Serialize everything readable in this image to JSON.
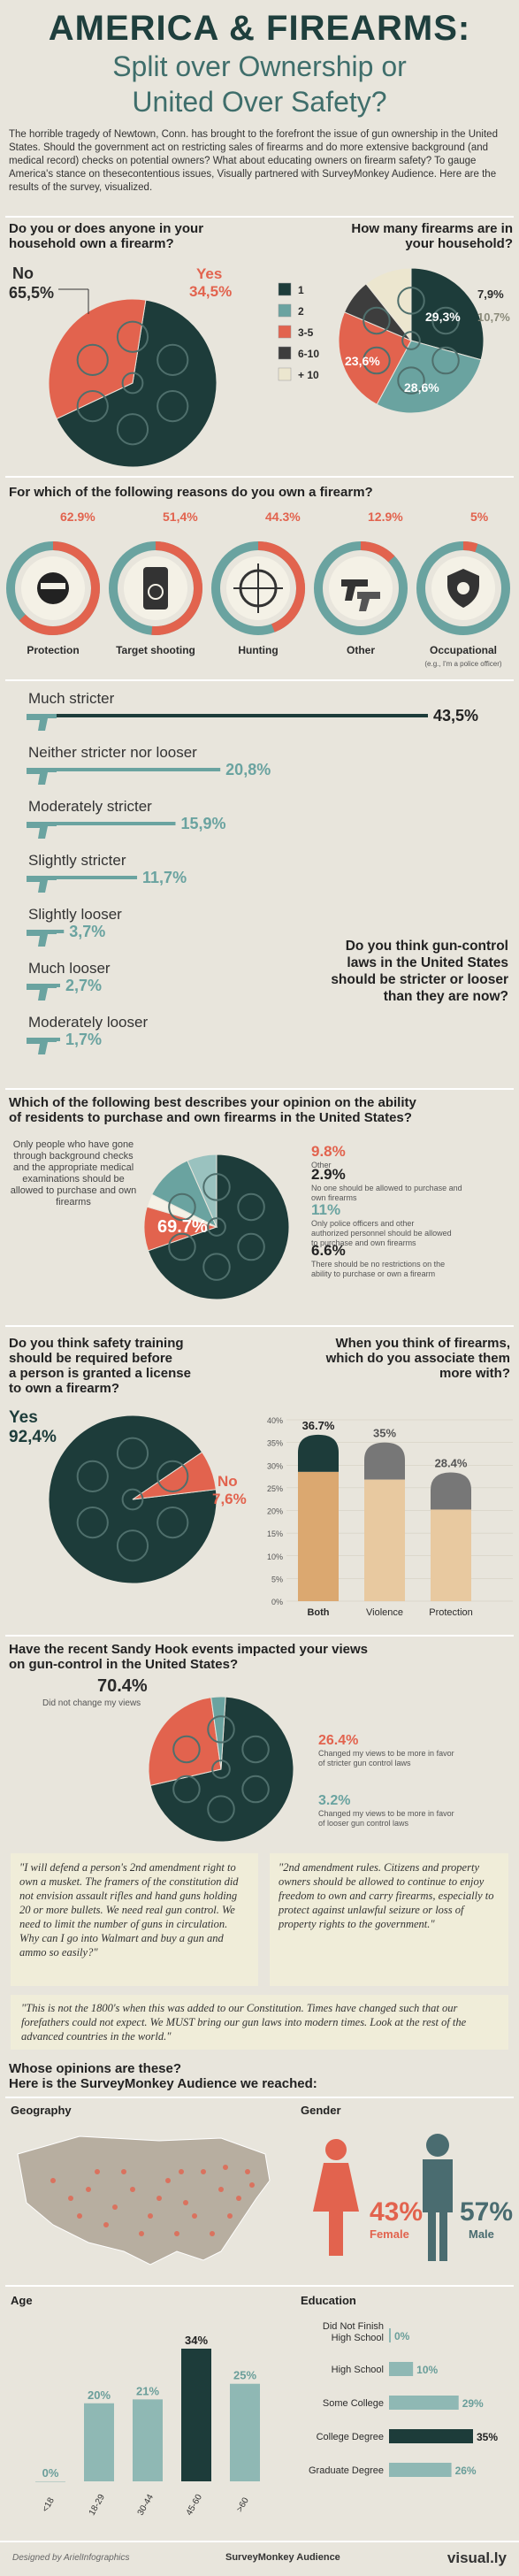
{
  "header": {
    "title_line1": "AMERICA & FIREARMS:",
    "title_line2": "Split over Ownership or",
    "title_line3": "United Over Safety?",
    "intro": "The horrible tragedy of Newtown, Conn. has brought to the forefront the issue of gun ownership in the United States. Should the government act on restricting sales of firearms and do more extensive background (and medical record) checks on potential owners? What about educating owners on firearm safety? To gauge America's stance on thesecontentious issues, Visually partnered with SurveyMonkey Audience. Here are the results of the survey, visualized."
  },
  "colors": {
    "dark": "#1d3c3a",
    "teal": "#6aa3a0",
    "red": "#e2634e",
    "grey": "#3d3d3d",
    "beige": "#ece6cf",
    "tan": "#dba870"
  },
  "q1": {
    "question_line1": "Do you or does anyone in your",
    "question_line2": "household own a firearm?",
    "no_label": "No",
    "no_value": "65,5%",
    "yes_label": "Yes",
    "yes_value": "34,5%"
  },
  "q2": {
    "question_line1": "How many firearms are in",
    "question_line2": "your household?",
    "legend": [
      "1",
      "2",
      "3-5",
      "6-10",
      "+ 10"
    ],
    "labels": [
      "29,3%",
      "28,6%",
      "23,6%",
      "7,9%",
      "10,7%"
    ]
  },
  "q3": {
    "question": "For which of the following reasons do you own a firearm?",
    "items": [
      {
        "label": "Protection",
        "value": "62.9%"
      },
      {
        "label": "Target shooting",
        "value": "51,4%"
      },
      {
        "label": "Hunting",
        "value": "44.3%"
      },
      {
        "label": "Other",
        "value": "12.9%"
      },
      {
        "label": "Occupational",
        "value": "5%",
        "note": "(e.g., I'm a police officer)"
      }
    ],
    "question_side_line1": "Do you think gun-control",
    "question_side_line2": "laws in the United States",
    "question_side_line3": "should be stricter or looser",
    "question_side_line4": "than they are now?",
    "bars": [
      {
        "label": "Much stricter",
        "value": "43,5%"
      },
      {
        "label": "Neither stricter nor looser",
        "value": "20,8%"
      },
      {
        "label": "Moderately stricter",
        "value": "15,9%"
      },
      {
        "label": "Slightly stricter",
        "value": "11,7%"
      },
      {
        "label": "Slightly looser",
        "value": "3,7%"
      },
      {
        "label": "Much looser",
        "value": "2,7%"
      },
      {
        "label": "Moderately looser",
        "value": "1,7%"
      }
    ]
  },
  "q4": {
    "question_line1": "Which of the following best describes your opinion on the ability",
    "question_line2": "of residents to purchase and own firearms in the United States?",
    "main_value": "69.7%",
    "main_desc": "Only people who have gone through background checks and the appropriate medical examinations should be allowed to purchase and own firearms",
    "items": [
      {
        "value": "9.8%",
        "desc": "Other"
      },
      {
        "value": "2.9%",
        "desc": "No one should be allowed to purchase and own firearms"
      },
      {
        "value": "11%",
        "desc": "Only police officers and other authorized personnel should be allowed to purchase and own firearms"
      },
      {
        "value": "6.6%",
        "desc": "There should be no restrictions on the ability to purchase or own a firearm"
      }
    ]
  },
  "q5": {
    "question_line1": "Do you think safety training",
    "question_line2": "should be required before",
    "question_line3": "a person is granted a license",
    "question_line4": "to own a firearm?",
    "yes_label": "Yes",
    "yes_value": "92,4%",
    "no_label": "No",
    "no_value": "7,6%"
  },
  "q6": {
    "question_line1": "When you think of firearms,",
    "question_line2": "which do you associate them",
    "question_line3": "more with?"
  },
  "q7": {
    "question_line1": "Have the recent Sandy Hook events impacted your views",
    "question_line2": "on gun-control in the United States?",
    "items": [
      {
        "value": "70.4%",
        "desc": "Did not change my views"
      },
      {
        "value": "26.4%",
        "desc": "Changed my views to be more in favor of stricter gun control laws"
      },
      {
        "value": "3.2%",
        "desc": "Changed my views to be more in favor of looser gun control laws"
      }
    ]
  },
  "quotes": {
    "q1": "\"I will defend a person's 2nd amendment right to own a musket. The framers of the constitution did not envision assault rifles and hand guns holding 20 or more bullets. We need real gun control. We need to limit the number of guns in circulation. Why can I go into Walmart and buy a gun and ammo so easily?\"",
    "q2": "\"2nd amendment rules. Citizens and property owners should be allowed to continue to enjoy freedom to own and carry firearms, especially to protect against unlawful seizure or loss of property rights to the government.\"",
    "q3": "\"This is not the 1800's when this was added to our Constitution. Times have changed such that our forefathers could not expect. We MUST bring our gun laws into modern times. Look at the rest of the advanced countries in the world.\""
  },
  "demo": {
    "heading_line1": "Whose opinions are these?",
    "heading_line2": "Here is the SurveyMonkey Audience we reached:",
    "geography": "Geography",
    "gender": "Gender",
    "female_value": "43%",
    "female_label": "Female",
    "male_value": "57%",
    "male_label": "Male",
    "age": "Age",
    "education": "Education"
  },
  "footer": {
    "designed": "Designed by ArielInfographics",
    "brand": "SurveyMonkey Audience",
    "visually": "visual.ly"
  },
  "chart_data": [
    {
      "type": "pie",
      "title": "Do you or does anyone in your household own a firearm?",
      "categories": [
        "No",
        "Yes"
      ],
      "values": [
        65.5,
        34.5
      ]
    },
    {
      "type": "pie",
      "title": "How many firearms are in your household?",
      "categories": [
        "1",
        "2",
        "3-5",
        "6-10",
        "+ 10"
      ],
      "values": [
        29.3,
        28.6,
        23.6,
        7.9,
        10.7
      ]
    },
    {
      "type": "pie",
      "title": "For which of the following reasons do you own a firearm?",
      "categories": [
        "Protection",
        "Target shooting",
        "Hunting",
        "Other",
        "Occupational"
      ],
      "values": [
        62.9,
        51.4,
        44.3,
        12.9,
        5
      ]
    },
    {
      "type": "bar",
      "title": "Do you think gun-control laws in the United States should be stricter or looser than they are now?",
      "categories": [
        "Much stricter",
        "Neither stricter nor looser",
        "Moderately stricter",
        "Slightly stricter",
        "Slightly looser",
        "Much looser",
        "Moderately looser"
      ],
      "values": [
        43.5,
        20.8,
        15.9,
        11.7,
        3.7,
        2.7,
        1.7
      ]
    },
    {
      "type": "pie",
      "title": "Which of the following best describes your opinion on the ability of residents to purchase and own firearms in the United States?",
      "categories": [
        "Only people who have gone through background checks and the appropriate medical examinations should be allowed to purchase and own firearms",
        "Other",
        "No one should be allowed to purchase and own firearms",
        "Only police officers and other authorized personnel should be allowed to purchase and own firearms",
        "There should be no restrictions on the ability to purchase or own a firearm"
      ],
      "values": [
        69.7,
        9.8,
        2.9,
        11,
        6.6
      ]
    },
    {
      "type": "pie",
      "title": "Do you think safety training should be required before a person is granted a license to own a firearm?",
      "categories": [
        "Yes",
        "No"
      ],
      "values": [
        92.4,
        7.6
      ]
    },
    {
      "type": "bar",
      "title": "When you think of firearms, which do you associate them more with?",
      "categories": [
        "Both",
        "Violence",
        "Protection"
      ],
      "values": [
        36.7,
        35,
        28.4
      ],
      "value_labels": [
        "36.7%",
        "35%",
        "28.4%"
      ],
      "ylim": [
        0,
        40
      ],
      "yticks": [
        "0%",
        "5%",
        "10%",
        "15%",
        "20%",
        "25%",
        "30%",
        "35%",
        "40%"
      ]
    },
    {
      "type": "pie",
      "title": "Have the recent Sandy Hook events impacted your views on gun-control in the United States?",
      "categories": [
        "Did not change my views",
        "Changed my views to be more in favor of stricter gun control laws",
        "Changed my views to be more in favor of looser gun control laws"
      ],
      "values": [
        70.4,
        26.4,
        3.2
      ]
    },
    {
      "type": "bar",
      "title": "Gender",
      "categories": [
        "Female",
        "Male"
      ],
      "values": [
        43,
        57
      ]
    },
    {
      "type": "bar",
      "title": "Age",
      "categories": [
        "<18",
        "18-29",
        "30-44",
        "45-60",
        ">60"
      ],
      "values": [
        0,
        20,
        21,
        34,
        25
      ],
      "value_labels": [
        "0%",
        "20%",
        "21%",
        "34%",
        "25%"
      ]
    },
    {
      "type": "bar",
      "title": "Education",
      "categories": [
        "Did Not Finish High School",
        "High School",
        "Some College",
        "College Degree",
        "Graduate Degree"
      ],
      "values": [
        0,
        10,
        29,
        35,
        26
      ],
      "value_labels": [
        "0%",
        "10%",
        "29%",
        "35%",
        "26%"
      ]
    }
  ]
}
